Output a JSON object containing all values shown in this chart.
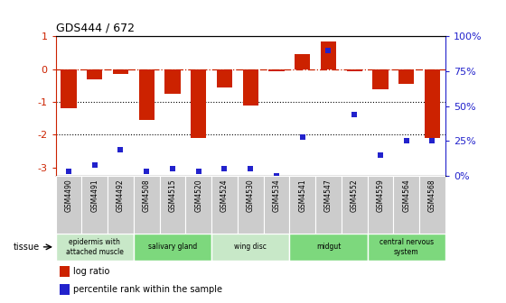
{
  "title": "GDS444 / 672",
  "samples": [
    "GSM4490",
    "GSM4491",
    "GSM4492",
    "GSM4508",
    "GSM4515",
    "GSM4520",
    "GSM4524",
    "GSM4530",
    "GSM4534",
    "GSM4541",
    "GSM4547",
    "GSM4552",
    "GSM4559",
    "GSM4564",
    "GSM4568"
  ],
  "log_ratio": [
    -1.2,
    -0.3,
    -0.15,
    -1.55,
    -0.75,
    -2.1,
    -0.55,
    -1.1,
    -0.05,
    0.45,
    0.85,
    -0.05,
    -0.6,
    -0.45,
    -2.1
  ],
  "percentile": [
    3,
    8,
    19,
    3,
    5,
    3,
    5,
    5,
    0,
    28,
    90,
    44,
    15,
    25,
    25
  ],
  "tissues": [
    {
      "label": "epidermis with\nattached muscle",
      "start": 0,
      "end": 3,
      "color": "#c8e8c8"
    },
    {
      "label": "salivary gland",
      "start": 3,
      "end": 6,
      "color": "#7dd87d"
    },
    {
      "label": "wing disc",
      "start": 6,
      "end": 9,
      "color": "#c8e8c8"
    },
    {
      "label": "midgut",
      "start": 9,
      "end": 12,
      "color": "#7dd87d"
    },
    {
      "label": "central nervous\nsystem",
      "start": 12,
      "end": 15,
      "color": "#7dd87d"
    }
  ],
  "bar_color": "#cc2200",
  "dot_color": "#2222cc",
  "ylim_left": [
    -3.25,
    1.0
  ],
  "ylim_right": [
    0,
    100
  ],
  "left_ticks": [
    1,
    0,
    -1,
    -2,
    -3
  ],
  "left_tick_labels": [
    "1",
    "0",
    "-1",
    "-2",
    "-3"
  ],
  "right_ticks": [
    0,
    25,
    50,
    75,
    100
  ],
  "right_tick_labels": [
    "0%",
    "25%",
    "50%",
    "75%",
    "100%"
  ]
}
